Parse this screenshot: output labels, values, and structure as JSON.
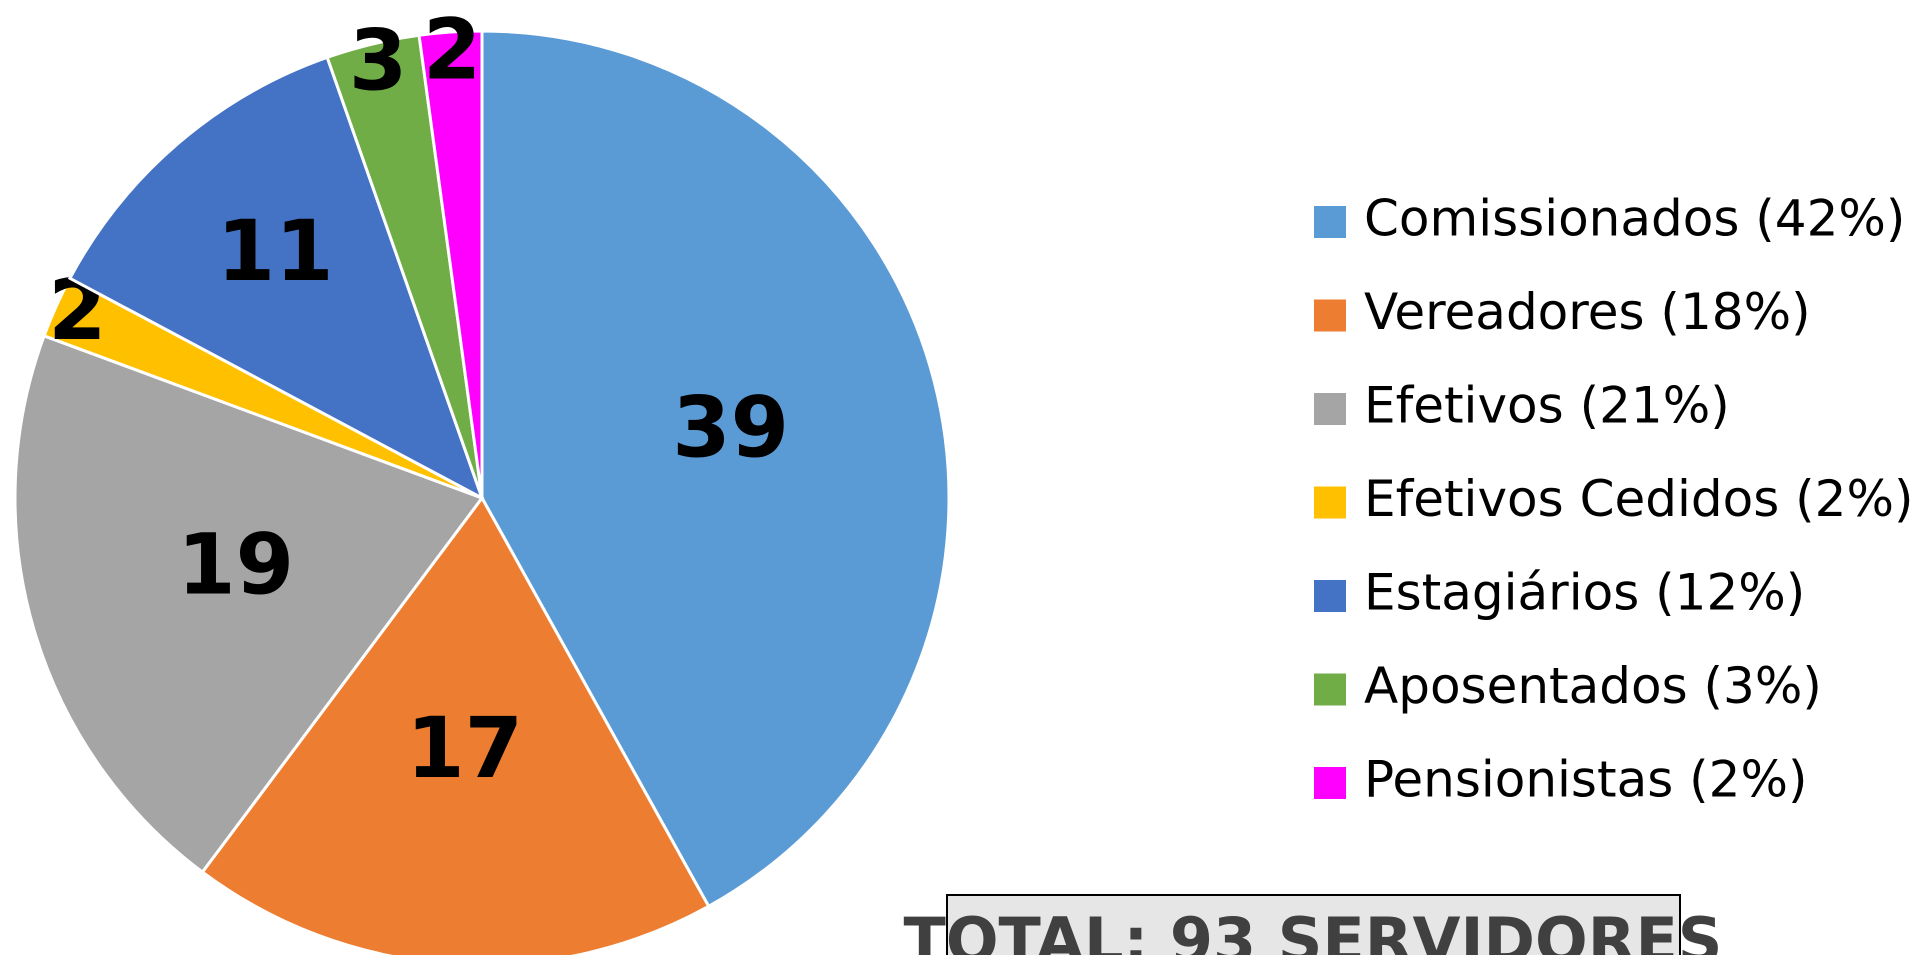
{
  "chart_data": {
    "type": "pie",
    "categories": [
      "Comissionados (42%)",
      "Vereadores (18%)",
      "Efetivos (21%)",
      "Efetivos Cedidos (2%)",
      "Estagiários (12%)",
      "Aposentados (3%)",
      "Pensionistas (2%)"
    ],
    "values": [
      39,
      17,
      19,
      2,
      11,
      3,
      2
    ],
    "colors": [
      "#5b9bd5",
      "#ed7d31",
      "#a5a5a5",
      "#ffc000",
      "#4472c4",
      "#70ad47",
      "#ff00ff"
    ],
    "legend": "right",
    "annotation": "TOTAL: 93 SERVIDORES"
  }
}
